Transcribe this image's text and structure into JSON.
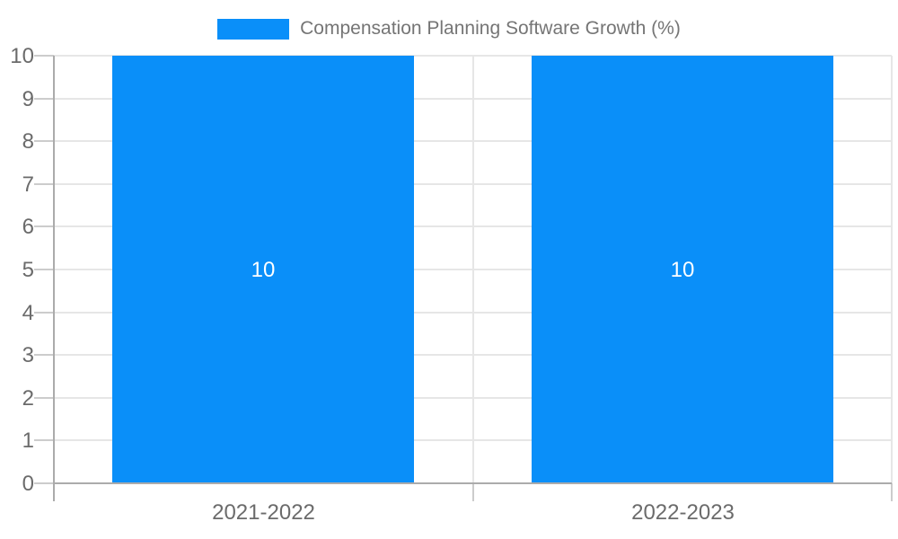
{
  "chart_data": {
    "type": "bar",
    "title": "Compensation Planning Software Growth (%)",
    "categories": [
      "2021-2022",
      "2022-2023"
    ],
    "series": [
      {
        "name": "Compensation Planning Software Growth (%)",
        "values": [
          10,
          10
        ]
      }
    ],
    "data_labels": [
      "10",
      "10"
    ],
    "xlabel": "",
    "ylabel": "",
    "ylim": [
      0,
      10
    ],
    "yticks": [
      0,
      1,
      2,
      3,
      4,
      5,
      6,
      7,
      8,
      9,
      10
    ],
    "grid": true,
    "legend_position": "top-center",
    "colors": {
      "bar": "#0A8FF9",
      "gridline": "#e6e6e6",
      "tick": "#cccccc",
      "axis_line": "#ababab",
      "axis_text": "#6b6b6b",
      "title_text": "#757575",
      "data_label_text": "#ffffff",
      "background": "#ffffff"
    }
  }
}
